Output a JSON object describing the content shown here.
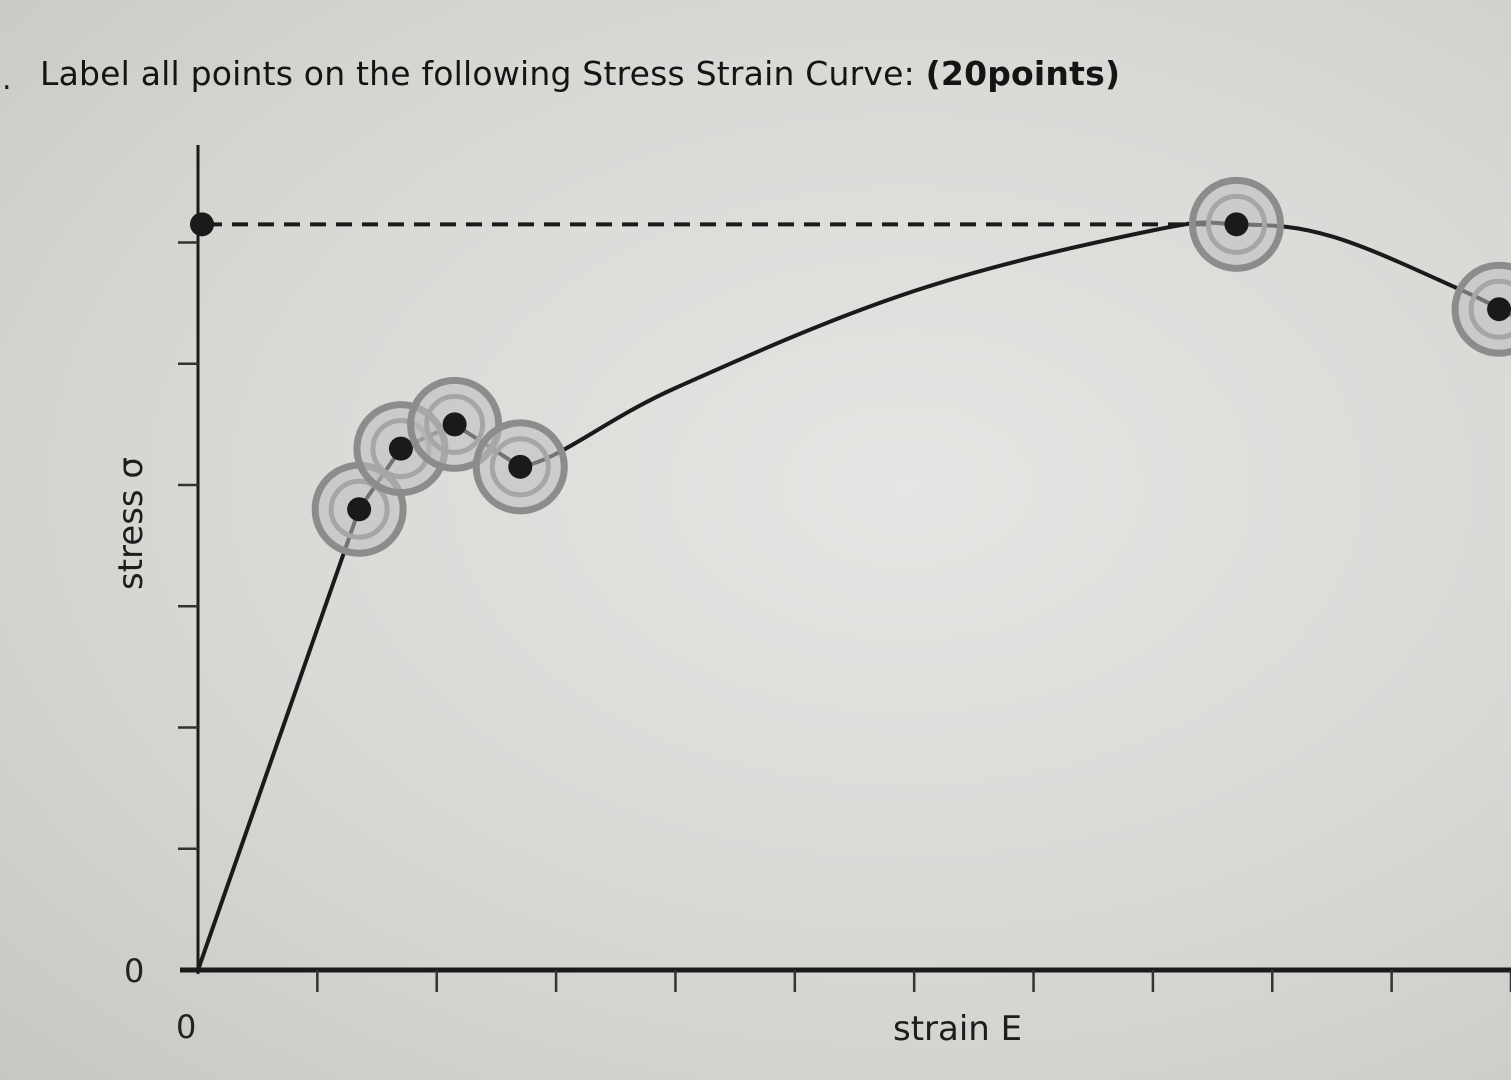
{
  "question": {
    "text": "Label all points on the following Stress Strain Curve: ",
    "points": "(20points)"
  },
  "colors": {
    "ink": "#1a1a1a",
    "ring": "#8c8c8c",
    "ring_inner": "#bdbdbd"
  },
  "chart_data": {
    "type": "line",
    "title": "",
    "xlabel": "strain E",
    "ylabel": "stress σ",
    "x_origin_label": "0",
    "y_origin_label": "0",
    "xlim": [
      0,
      11
    ],
    "ylim": [
      0,
      6.4
    ],
    "x_ticks": [
      1,
      2,
      3,
      4,
      5,
      6,
      7,
      8,
      9,
      10,
      11
    ],
    "y_ticks": [
      1,
      2,
      3,
      4,
      5,
      6
    ],
    "series": [
      {
        "values": [
          [
            0,
            0
          ],
          [
            1.35,
            3.8
          ],
          [
            1.7,
            4.3
          ],
          [
            2.15,
            4.5
          ],
          [
            2.7,
            4.15
          ],
          [
            4,
            4.8
          ],
          [
            6,
            5.6
          ],
          [
            8,
            6.1
          ],
          [
            8.7,
            6.15
          ],
          [
            9.5,
            6.05
          ],
          [
            10.6,
            5.6
          ],
          [
            11,
            5.4
          ]
        ]
      }
    ],
    "marked_points": [
      {
        "x": 1.35,
        "y": 3.8
      },
      {
        "x": 1.7,
        "y": 4.3
      },
      {
        "x": 2.15,
        "y": 4.5
      },
      {
        "x": 2.7,
        "y": 4.15
      },
      {
        "x": 8.7,
        "y": 6.15
      },
      {
        "x": 10.9,
        "y": 5.45
      }
    ],
    "ultimate_reference": {
      "y": 6.15,
      "dashed_from_axis_to_x": 8.7
    }
  }
}
